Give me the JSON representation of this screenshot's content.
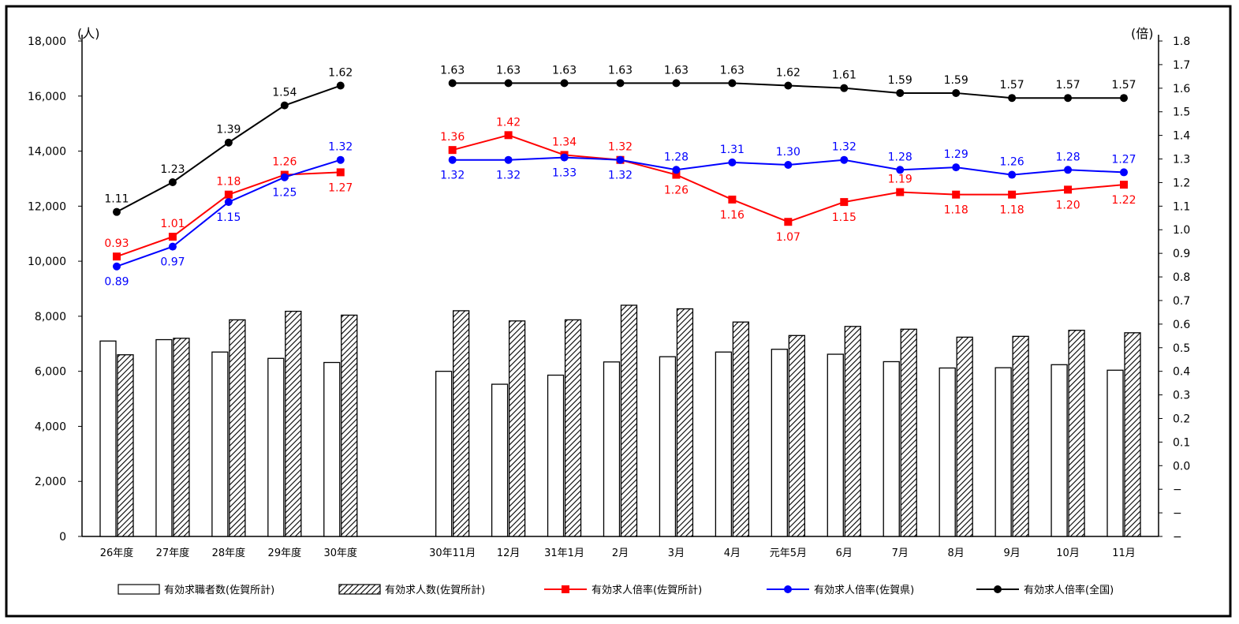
{
  "chart_data": {
    "type": "bar",
    "left_axis_unit": "(人)",
    "right_axis_unit": "(倍)",
    "left_ylim": [
      0,
      18000
    ],
    "left_ticks": [
      "0",
      "2,000",
      "4,000",
      "6,000",
      "8,000",
      "10,000",
      "12,000",
      "14,000",
      "16,000",
      "18,000"
    ],
    "right_ylim": [
      -0.2,
      1.8
    ],
    "right_ticks": [
      "−",
      "−",
      "−",
      "0.0",
      "0.1",
      "0.2",
      "0.3",
      "0.4",
      "0.5",
      "0.6",
      "0.7",
      "0.8",
      "0.9",
      "1.0",
      "1.1",
      "1.2",
      "1.3",
      "1.4",
      "1.5",
      "1.6",
      "1.7",
      "1.8"
    ],
    "categories": [
      "26年度",
      "27年度",
      "28年度",
      "29年度",
      "30年度",
      "",
      "30年11月",
      "12月",
      "31年1月",
      "2月",
      "3月",
      "4月",
      "元年5月",
      "6月",
      "7月",
      "8月",
      "9月",
      "10月",
      "11月"
    ],
    "bar_series": [
      {
        "name": "有効求職者数(佐賀所計)",
        "values": [
          7100,
          7150,
          6700,
          6470,
          6320,
          null,
          6000,
          5530,
          5860,
          6340,
          6530,
          6700,
          6800,
          6620,
          6350,
          6120,
          6130,
          6240,
          6040
        ]
      },
      {
        "name": "有効求人数(佐賀所計)",
        "values": [
          6600,
          7200,
          7870,
          8180,
          8040,
          null,
          8200,
          7830,
          7870,
          8400,
          8270,
          7790,
          7300,
          7630,
          7530,
          7240,
          7270,
          7490,
          7400
        ]
      }
    ],
    "line_series": [
      {
        "name": "有効求人倍率(佐賀所計)",
        "color": "#ff0000",
        "marker": "square",
        "values": [
          0.93,
          1.01,
          1.18,
          1.26,
          1.27,
          null,
          1.36,
          1.42,
          1.34,
          1.32,
          1.26,
          1.16,
          1.07,
          1.15,
          1.19,
          1.18,
          1.18,
          1.2,
          1.22
        ],
        "labels": [
          "0.93",
          "1.01",
          "1.18",
          "1.26",
          "1.27",
          "",
          "1.36",
          "1.42",
          "1.34",
          "1.32",
          "1.26",
          "1.16",
          "1.07",
          "1.15",
          "1.19",
          "1.18",
          "1.18",
          "1.20",
          "1.22"
        ]
      },
      {
        "name": "有効求人倍率(佐賀県)",
        "color": "#0000ff",
        "marker": "circle",
        "values": [
          0.89,
          0.97,
          1.15,
          1.25,
          1.32,
          null,
          1.32,
          1.32,
          1.33,
          1.32,
          1.28,
          1.31,
          1.3,
          1.32,
          1.28,
          1.29,
          1.26,
          1.28,
          1.27
        ],
        "labels": [
          "0.89",
          "0.97",
          "1.15",
          "1.25",
          "1.32",
          "",
          "1.32",
          "1.32",
          "1.33",
          "1.32",
          "1.28",
          "1.31",
          "1.30",
          "1.32",
          "1.28",
          "1.29",
          "1.26",
          "1.28",
          "1.27"
        ]
      },
      {
        "name": "有効求人倍率(全国)",
        "color": "#000000",
        "marker": "circle",
        "values": [
          1.11,
          1.23,
          1.39,
          1.54,
          1.62,
          null,
          1.63,
          1.63,
          1.63,
          1.63,
          1.63,
          1.63,
          1.62,
          1.61,
          1.59,
          1.59,
          1.57,
          1.57,
          1.57
        ],
        "labels": [
          "1.11",
          "1.23",
          "1.39",
          "1.54",
          "1.62",
          "",
          "1.63",
          "1.63",
          "1.63",
          "1.63",
          "1.63",
          "1.63",
          "1.62",
          "1.61",
          "1.59",
          "1.59",
          "1.57",
          "1.57",
          "1.57"
        ]
      }
    ],
    "legend_position": "bottom"
  }
}
